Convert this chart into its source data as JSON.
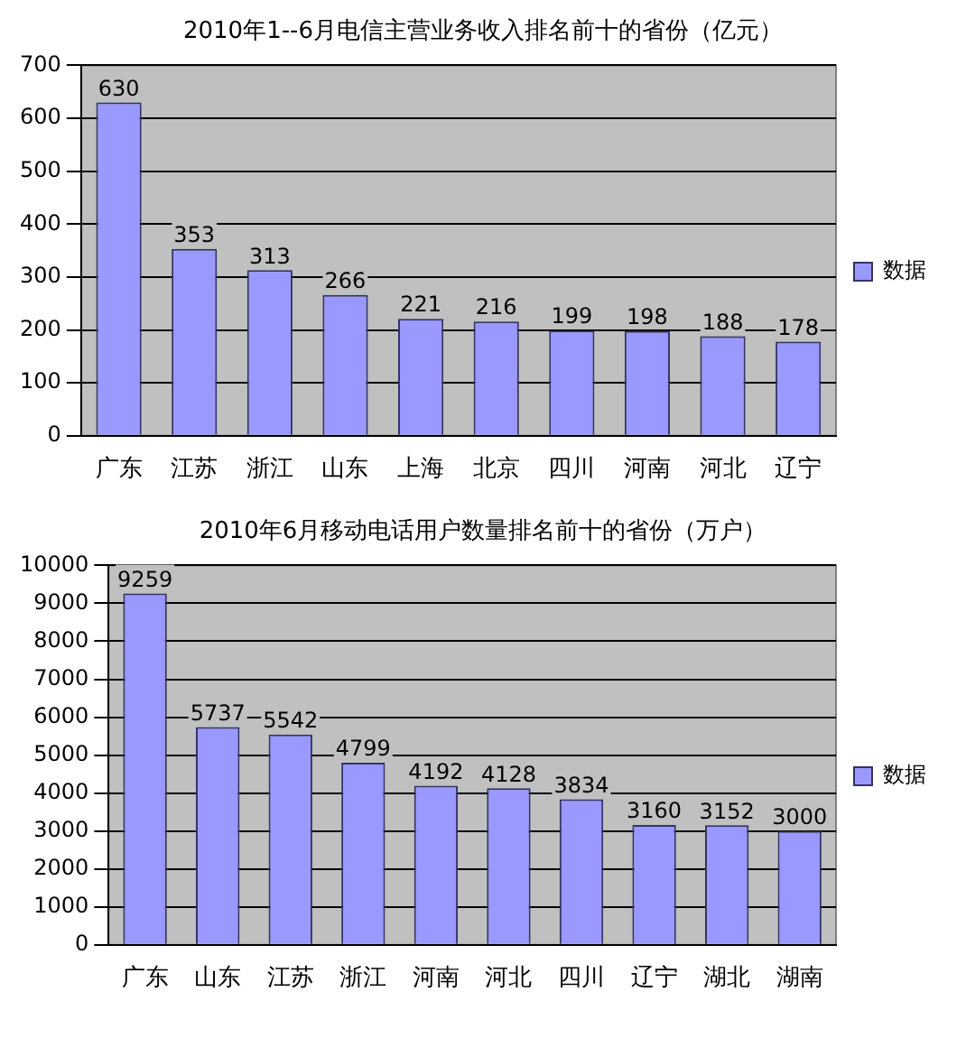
{
  "chart_data": [
    {
      "type": "bar",
      "title": "2010年1--6月电信主营业务收入排名前十的省份（亿元）",
      "categories": [
        "广东",
        "江苏",
        "浙江",
        "山东",
        "上海",
        "北京",
        "四川",
        "河南",
        "河北",
        "辽宁"
      ],
      "series": [
        {
          "name": "数据",
          "color": "#9999ff",
          "values": [
            630,
            353,
            313,
            266,
            221,
            216,
            199,
            198,
            188,
            178
          ]
        }
      ],
      "ylim": [
        0,
        700
      ],
      "yticks": [
        0,
        100,
        200,
        300,
        400,
        500,
        600,
        700
      ],
      "grid": "y",
      "legend": "right",
      "data_labels": true
    },
    {
      "type": "bar",
      "title": "2010年6月移动电话用户数量排名前十的省份（万户）",
      "categories": [
        "广东",
        "山东",
        "江苏",
        "浙江",
        "河南",
        "河北",
        "四川",
        "辽宁",
        "湖北",
        "湖南"
      ],
      "series": [
        {
          "name": "数据",
          "color": "#9999ff",
          "values": [
            9259,
            5737,
            5542,
            4799,
            4192,
            4128,
            3834,
            3160,
            3152,
            3000
          ]
        }
      ],
      "ylim": [
        0,
        10000
      ],
      "yticks": [
        0,
        1000,
        2000,
        3000,
        4000,
        5000,
        6000,
        7000,
        8000,
        9000,
        10000
      ],
      "grid": "y",
      "legend": "right",
      "data_labels": true
    }
  ]
}
